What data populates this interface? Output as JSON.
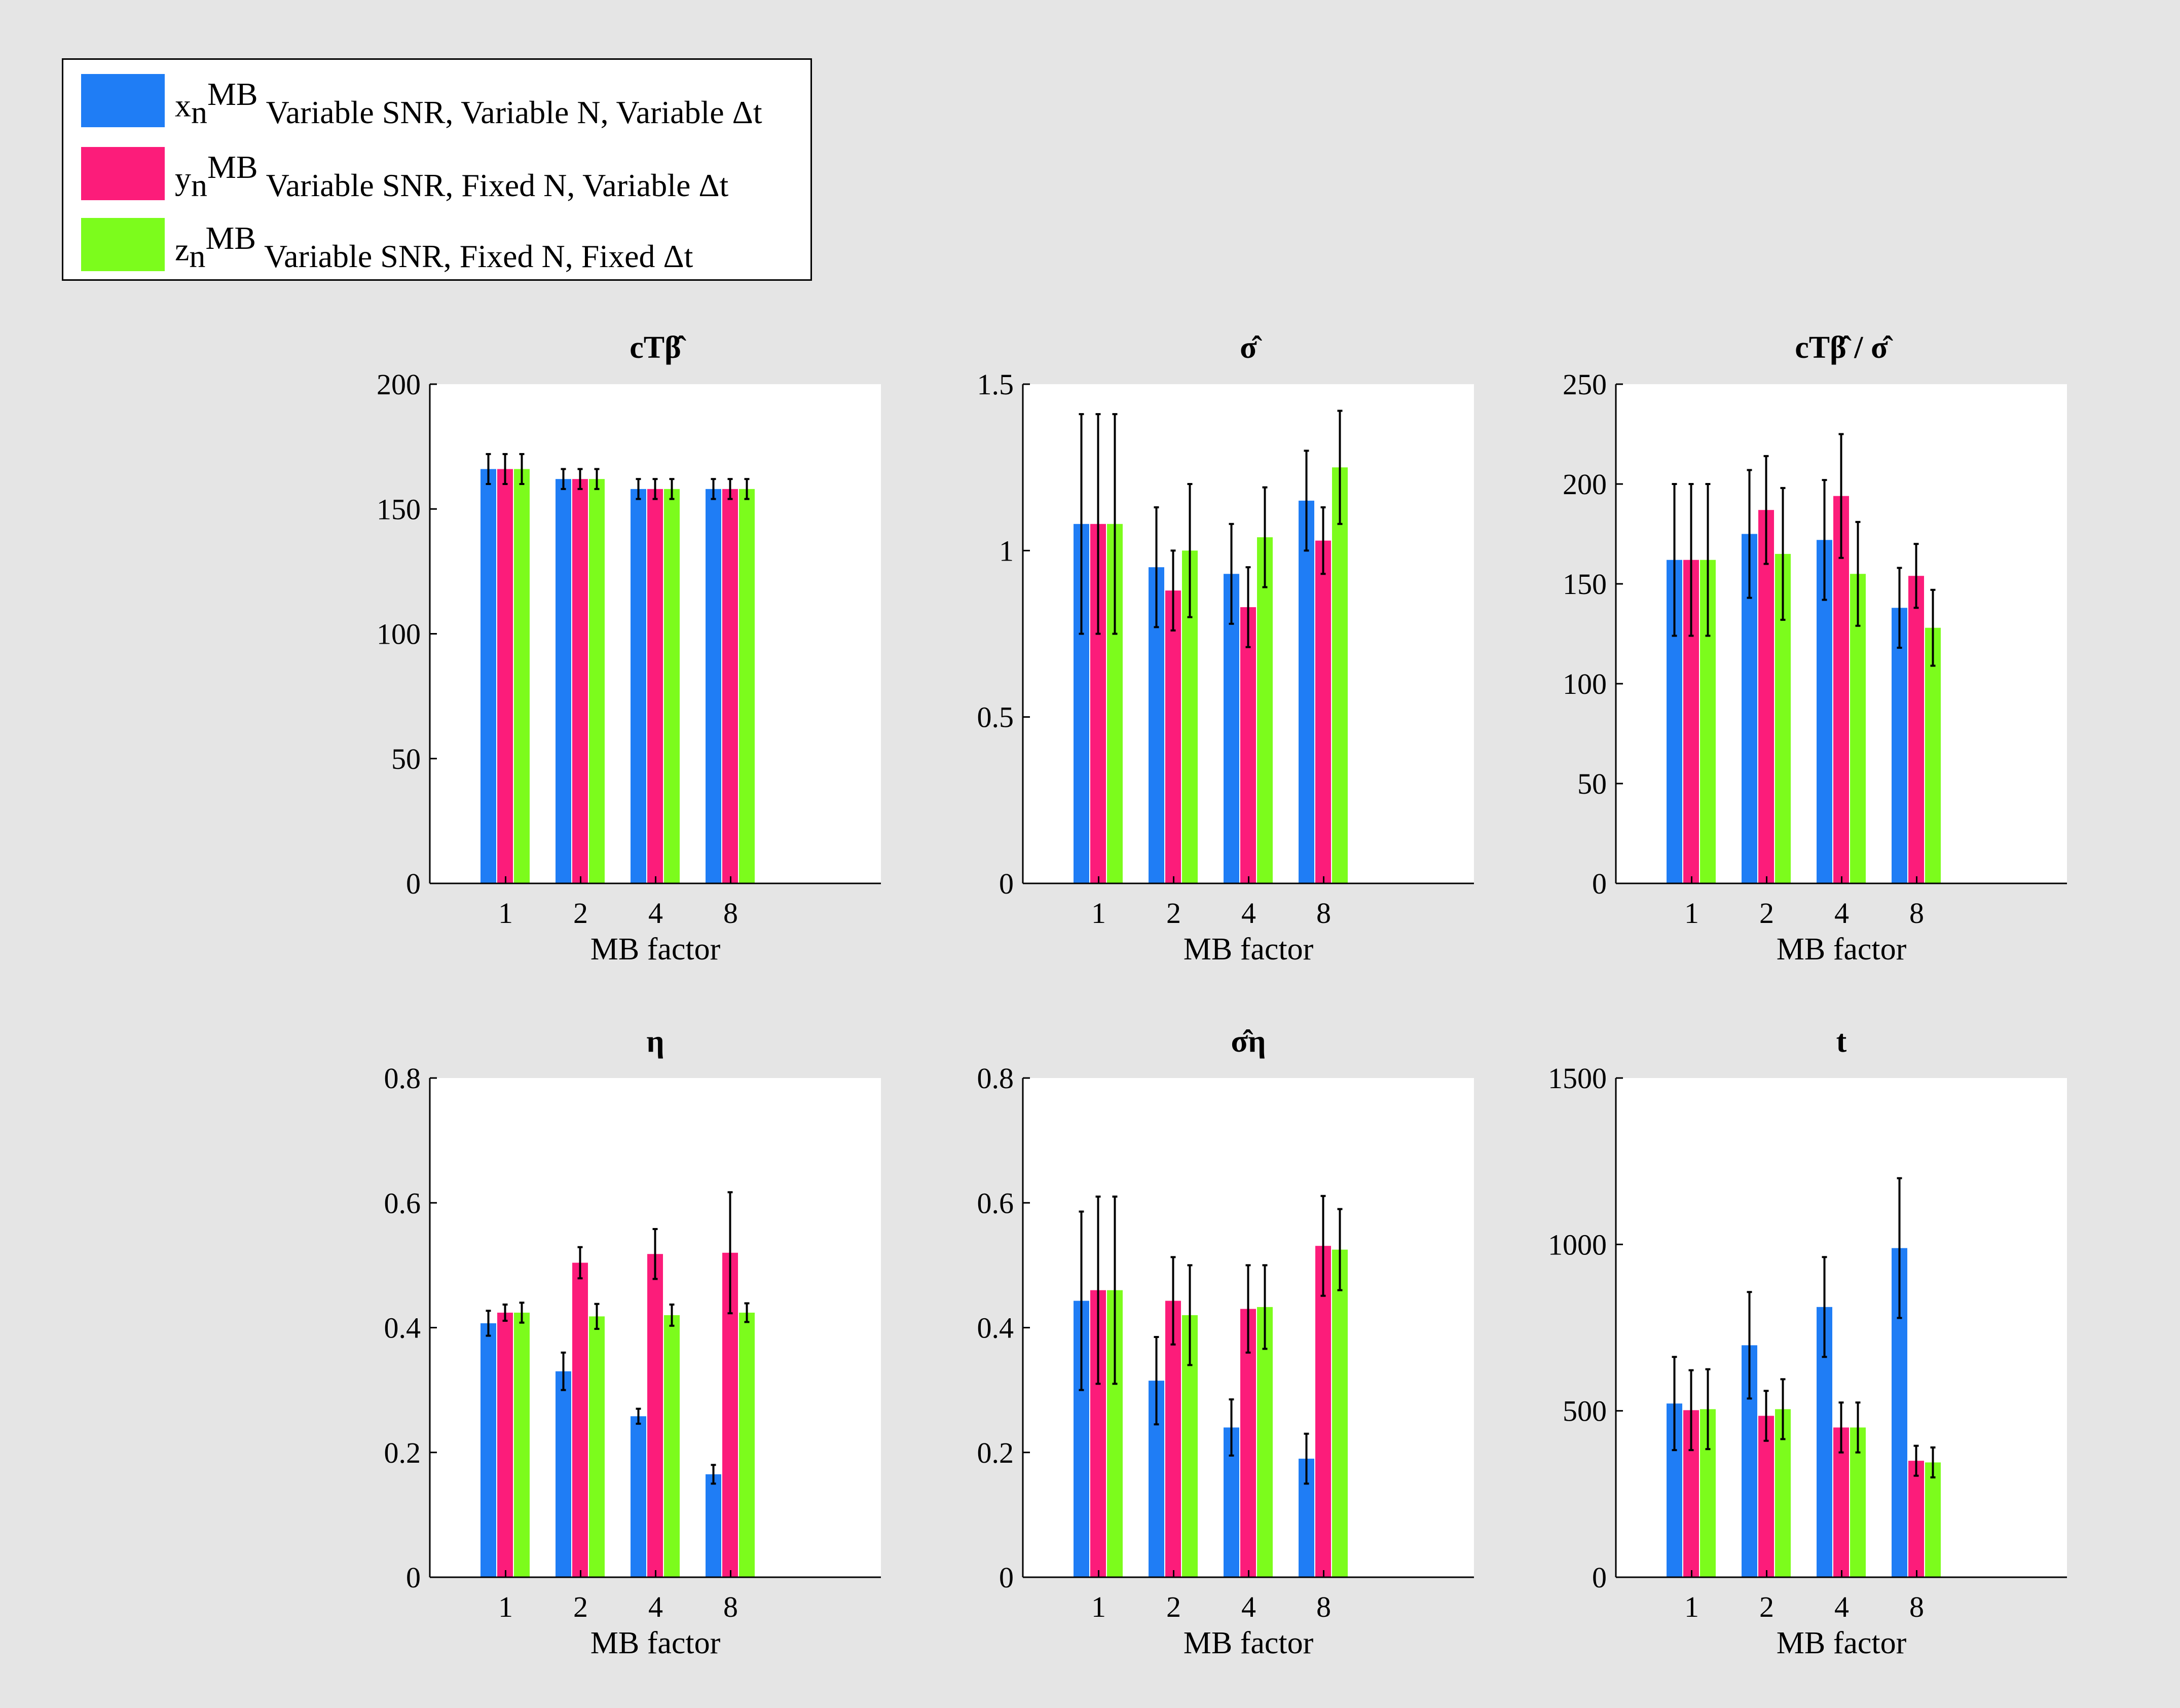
{
  "colors": {
    "background": "#e5e5e5",
    "series": [
      "#1f7df5",
      "#fc1c7a",
      "#7cfc1c"
    ]
  },
  "legend": {
    "items": [
      {
        "sym": "x",
        "sub": "n",
        "sup": "MB",
        "desc": "Variable SNR, Variable N, Variable Δt"
      },
      {
        "sym": "y",
        "sub": "n",
        "sup": "MB",
        "desc": "Variable SNR, Fixed N, Variable Δt"
      },
      {
        "sym": "z",
        "sub": "n",
        "sup": "MB",
        "desc": "Variable SNR, Fixed N, Fixed Δt"
      }
    ]
  },
  "chart_data": [
    {
      "type": "bar",
      "title": "cTβ̂",
      "title_parts": {
        "base": "c",
        "sup": "T",
        "hat": "β"
      },
      "categories": [
        "1",
        "2",
        "4",
        "8"
      ],
      "xlabel": "MB factor",
      "ylim": [
        0,
        200
      ],
      "yticks": [
        "0",
        "50",
        "100",
        "150",
        "200"
      ],
      "series": [
        {
          "values": [
            166,
            162,
            158,
            158
          ],
          "err": [
            6,
            4,
            4,
            4
          ]
        },
        {
          "values": [
            166,
            162,
            158,
            158
          ],
          "err": [
            6,
            4,
            4,
            4
          ]
        },
        {
          "values": [
            166,
            162,
            158,
            158
          ],
          "err": [
            6,
            4,
            4,
            4
          ]
        }
      ]
    },
    {
      "type": "bar",
      "title": "σ̂",
      "categories": [
        "1",
        "2",
        "4",
        "8"
      ],
      "xlabel": "MB factor",
      "ylim": [
        0,
        1.5
      ],
      "yticks": [
        "0",
        "0.5",
        "1",
        "1.5"
      ],
      "series": [
        {
          "values": [
            1.08,
            0.95,
            0.93,
            1.15
          ],
          "err": [
            0.33,
            0.18,
            0.15,
            0.15
          ]
        },
        {
          "values": [
            1.08,
            0.88,
            0.83,
            1.03
          ],
          "err": [
            0.33,
            0.12,
            0.12,
            0.1
          ]
        },
        {
          "values": [
            1.08,
            1.0,
            1.04,
            1.25
          ],
          "err": [
            0.33,
            0.2,
            0.15,
            0.17
          ]
        }
      ]
    },
    {
      "type": "bar",
      "title": "cTβ̂ / σ̂",
      "categories": [
        "1",
        "2",
        "4",
        "8"
      ],
      "xlabel": "MB factor",
      "ylim": [
        0,
        250
      ],
      "yticks": [
        "0",
        "50",
        "100",
        "150",
        "200",
        "250"
      ],
      "series": [
        {
          "values": [
            162,
            175,
            172,
            138
          ],
          "err": [
            38,
            32,
            30,
            20
          ]
        },
        {
          "values": [
            162,
            187,
            194,
            154
          ],
          "err": [
            38,
            27,
            31,
            16
          ]
        },
        {
          "values": [
            162,
            165,
            155,
            128
          ],
          "err": [
            38,
            33,
            26,
            19
          ]
        }
      ]
    },
    {
      "type": "bar",
      "title": "η",
      "categories": [
        "1",
        "2",
        "4",
        "8"
      ],
      "xlabel": "MB factor",
      "ylim": [
        0,
        0.8
      ],
      "yticks": [
        "0",
        "0.2",
        "0.4",
        "0.6",
        "0.8"
      ],
      "series": [
        {
          "values": [
            0.407,
            0.33,
            0.258,
            0.165
          ],
          "err": [
            0.02,
            0.03,
            0.012,
            0.015
          ]
        },
        {
          "values": [
            0.424,
            0.504,
            0.518,
            0.52
          ],
          "err": [
            0.013,
            0.025,
            0.04,
            0.097
          ]
        },
        {
          "values": [
            0.424,
            0.418,
            0.42,
            0.424
          ],
          "err": [
            0.016,
            0.02,
            0.017,
            0.015
          ]
        }
      ]
    },
    {
      "type": "bar",
      "title": "σ̂η",
      "categories": [
        "1",
        "2",
        "4",
        "8"
      ],
      "xlabel": "MB factor",
      "ylim": [
        0,
        0.8
      ],
      "yticks": [
        "0",
        "0.2",
        "0.4",
        "0.6",
        "0.8"
      ],
      "series": [
        {
          "values": [
            0.443,
            0.315,
            0.24,
            0.19
          ],
          "err": [
            0.143,
            0.07,
            0.045,
            0.04
          ]
        },
        {
          "values": [
            0.46,
            0.443,
            0.43,
            0.531
          ],
          "err": [
            0.15,
            0.07,
            0.07,
            0.08
          ]
        },
        {
          "values": [
            0.46,
            0.42,
            0.433,
            0.525
          ],
          "err": [
            0.15,
            0.08,
            0.067,
            0.065
          ]
        }
      ]
    },
    {
      "type": "bar",
      "title": "t",
      "categories": [
        "1",
        "2",
        "4",
        "8"
      ],
      "xlabel": "MB factor",
      "ylim": [
        0,
        1500
      ],
      "yticks": [
        "0",
        "500",
        "1000",
        "1500"
      ],
      "series": [
        {
          "values": [
            522,
            697,
            812,
            989
          ],
          "err": [
            140,
            160,
            150,
            210
          ]
        },
        {
          "values": [
            502,
            485,
            450,
            350
          ],
          "err": [
            120,
            75,
            75,
            45
          ]
        },
        {
          "values": [
            505,
            505,
            450,
            345
          ],
          "err": [
            120,
            90,
            75,
            45
          ]
        }
      ]
    }
  ]
}
